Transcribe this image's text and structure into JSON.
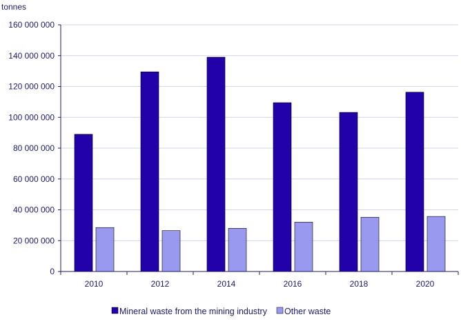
{
  "chart_data": {
    "type": "bar",
    "ylabel": "tonnes",
    "categories": [
      "2010",
      "2012",
      "2014",
      "2016",
      "2018",
      "2020"
    ],
    "series": [
      {
        "name": "Mineral waste from the mining industry",
        "color": "#2200aa",
        "values": [
          89000000,
          129500000,
          139000000,
          109500000,
          103200000,
          116300000
        ]
      },
      {
        "name": "Other waste",
        "color": "#9999f0",
        "values": [
          28500000,
          26500000,
          28000000,
          32000000,
          35200000,
          35700000
        ]
      }
    ],
    "ylim": [
      0,
      160000000
    ],
    "yticks": [
      "0",
      "20 000 000",
      "40 000 000",
      "60 000 000",
      "80 000 000",
      "100 000 000",
      "120 000 000",
      "140 000 000",
      "160 000 000"
    ],
    "grid": true,
    "legend_position": "bottom"
  }
}
